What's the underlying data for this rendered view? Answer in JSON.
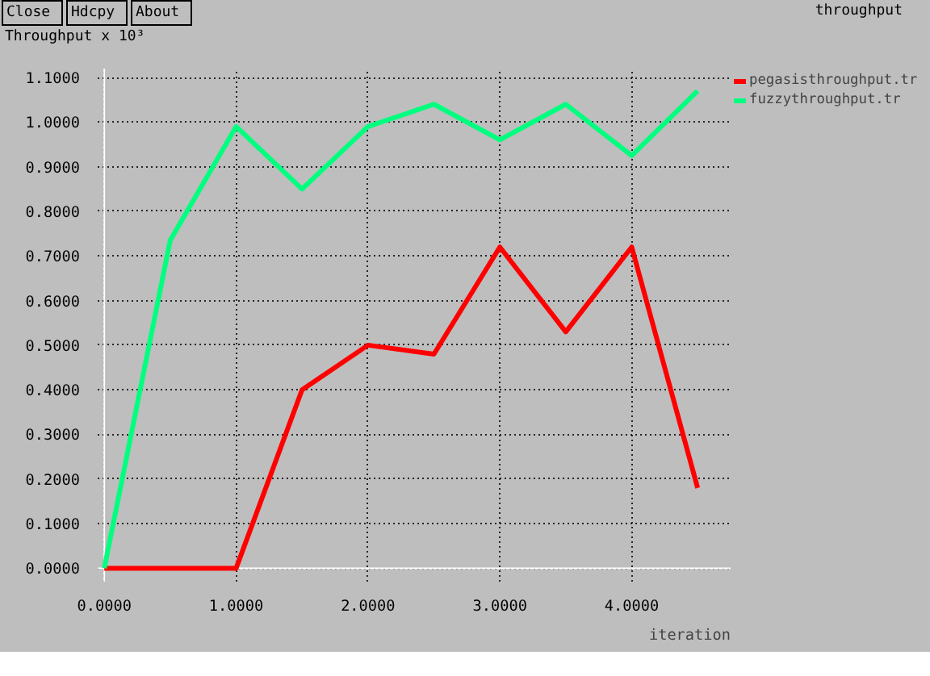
{
  "chart_data": {
    "type": "line",
    "title": "throughput",
    "ylabel": "Throughput x 10³",
    "xlabel": "iteration",
    "annotations": [
      "Close",
      "Hdcpy",
      "About"
    ],
    "x": [
      0,
      0.5,
      1,
      1.5,
      2,
      2.5,
      3,
      3.5,
      4,
      4.5
    ],
    "series": [
      {
        "name": "pegasisthroughput.tr",
        "color": "#ff0000",
        "values": [
          0,
          0,
          0,
          0.4,
          0.5,
          0.48,
          0.72,
          0.53,
          0.72,
          0.18
        ]
      },
      {
        "name": "fuzzythroughput.tr",
        "color": "#00ff7f",
        "values": [
          0,
          0.735,
          0.99,
          0.85,
          0.99,
          1.04,
          0.96,
          1.04,
          0.925,
          1.07
        ]
      }
    ],
    "xlim": [
      -0.05,
      4.75
    ],
    "ylim": [
      -0.03,
      1.12
    ],
    "xticks": [
      {
        "value": 0,
        "label": "0.0000"
      },
      {
        "value": 1,
        "label": "1.0000"
      },
      {
        "value": 2,
        "label": "2.0000"
      },
      {
        "value": 3,
        "label": "3.0000"
      },
      {
        "value": 4,
        "label": "4.0000"
      }
    ],
    "yticks": [
      {
        "value": 0,
        "label": "0.0000"
      },
      {
        "value": 0.1,
        "label": "0.1000"
      },
      {
        "value": 0.2,
        "label": "0.2000"
      },
      {
        "value": 0.3,
        "label": "0.3000"
      },
      {
        "value": 0.4,
        "label": "0.4000"
      },
      {
        "value": 0.5,
        "label": "0.5000"
      },
      {
        "value": 0.6,
        "label": "0.6000"
      },
      {
        "value": 0.7,
        "label": "0.7000"
      },
      {
        "value": 0.8,
        "label": "0.8000"
      },
      {
        "value": 0.9,
        "label": "0.9000"
      },
      {
        "value": 1.0,
        "label": "1.0000"
      },
      {
        "value": 1.1,
        "label": "1.1000"
      }
    ],
    "grid": true,
    "legend": "top right",
    "marker": "none",
    "line_style": "solid"
  }
}
